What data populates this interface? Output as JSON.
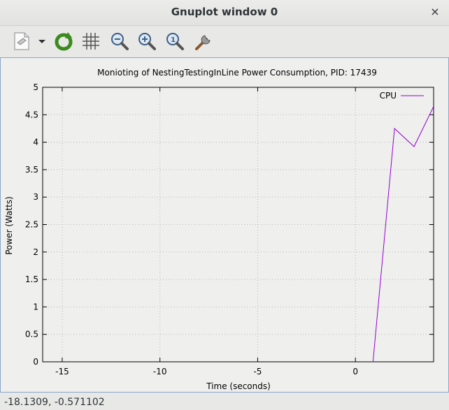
{
  "window": {
    "title": "Gnuplot window 0",
    "close_glyph": "×"
  },
  "toolbar": {
    "buttons": [
      {
        "name": "export-icon"
      },
      {
        "name": "export-dropdown-icon"
      },
      {
        "name": "replot-icon"
      },
      {
        "name": "grid-icon"
      },
      {
        "name": "zoom-out-icon"
      },
      {
        "name": "zoom-in-icon"
      },
      {
        "name": "zoom-reset-icon"
      },
      {
        "name": "config-icon"
      }
    ]
  },
  "status": {
    "coords": "-18.1309, -0.571102"
  },
  "chart_data": {
    "type": "line",
    "title": "Monioting of NestingTestingInLine Power Consumption, PID: 17439",
    "xlabel": "Time (seconds)",
    "ylabel": "Power (Watts)",
    "xlim": [
      -16,
      4
    ],
    "ylim": [
      0,
      5
    ],
    "x_ticks": [
      -15,
      -10,
      -5,
      0
    ],
    "x_tick_labels": [
      "-15",
      "-10",
      "-5",
      "0"
    ],
    "y_ticks": [
      0,
      0.5,
      1,
      1.5,
      2,
      2.5,
      3,
      3.5,
      4,
      4.5,
      5
    ],
    "y_tick_labels": [
      "0",
      "0.5",
      "1",
      "1.5",
      "2",
      "2.5",
      "3",
      "3.5",
      "4",
      "4.5",
      "5"
    ],
    "grid": true,
    "legend_position": "top-right",
    "series": [
      {
        "name": "CPU",
        "color": "#9400d3",
        "x": [
          0.9,
          2,
          3,
          4
        ],
        "y": [
          0,
          4.25,
          3.92,
          4.65
        ]
      }
    ]
  }
}
